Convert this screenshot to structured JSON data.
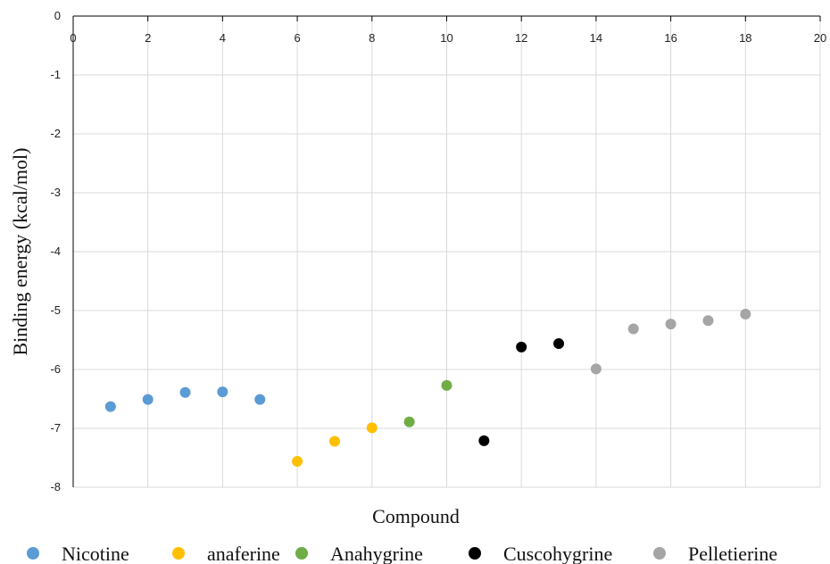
{
  "chart_data": {
    "type": "scatter",
    "xlabel": "Compound",
    "ylabel": "Binding energy (kcal/mol)",
    "xlim": [
      0,
      20
    ],
    "ylim": [
      -8,
      0
    ],
    "x_ticks": [
      0,
      2,
      4,
      6,
      8,
      10,
      12,
      14,
      16,
      18,
      20
    ],
    "y_ticks": [
      0,
      -1,
      -2,
      -3,
      -4,
      -5,
      -6,
      -7,
      -8
    ],
    "x_axis_position": "top",
    "grid": true,
    "legend_position": "bottom",
    "series": [
      {
        "name": "Nicotine",
        "color": "#5b9bd5",
        "points": [
          {
            "x": 1,
            "y": -6.63
          },
          {
            "x": 2,
            "y": -6.51
          },
          {
            "x": 3,
            "y": -6.39
          },
          {
            "x": 4,
            "y": -6.38
          },
          {
            "x": 5,
            "y": -6.51
          }
        ]
      },
      {
        "name": "anaferine",
        "color": "#ffc000",
        "points": [
          {
            "x": 6,
            "y": -7.56
          },
          {
            "x": 7,
            "y": -7.22
          },
          {
            "x": 8,
            "y": -6.99
          }
        ]
      },
      {
        "name": "Anahygrine",
        "color": "#70ad47",
        "points": [
          {
            "x": 9,
            "y": -6.89
          },
          {
            "x": 10,
            "y": -6.27
          }
        ]
      },
      {
        "name": "Cuscohygrine",
        "color": "#000000",
        "points": [
          {
            "x": 11,
            "y": -7.21
          },
          {
            "x": 12,
            "y": -5.62
          },
          {
            "x": 13,
            "y": -5.56
          }
        ]
      },
      {
        "name": "Pelletierine",
        "color": "#a5a5a5",
        "points": [
          {
            "x": 14,
            "y": -5.99
          },
          {
            "x": 15,
            "y": -5.31
          },
          {
            "x": 16,
            "y": -5.23
          },
          {
            "x": 17,
            "y": -5.17
          },
          {
            "x": 18,
            "y": -5.06
          }
        ]
      }
    ]
  }
}
